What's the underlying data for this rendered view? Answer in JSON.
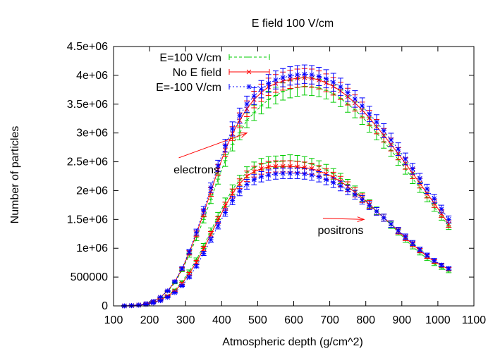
{
  "chart_data": {
    "type": "line",
    "title": "E field 100 V/cm",
    "xlabel": "Atmospheric depth (g/cm^2)",
    "ylabel": "Number of particles",
    "xlim": [
      100,
      1100
    ],
    "ylim": [
      0,
      4500000
    ],
    "x_ticks": [
      100,
      200,
      300,
      400,
      500,
      600,
      700,
      800,
      900,
      1000,
      1100
    ],
    "x_tick_labels": [
      "100",
      "200",
      "300",
      "400",
      "500",
      "600",
      "700",
      "800",
      "900",
      "1000",
      "1100"
    ],
    "y_ticks": [
      0,
      500000,
      1000000,
      1500000,
      2000000,
      2500000,
      3000000,
      3500000,
      4000000,
      4500000
    ],
    "y_tick_labels": [
      "0",
      "500000",
      "1e+06",
      "1.5e+06",
      "2e+06",
      "2.5e+06",
      "3e+06",
      "3.5e+06",
      "4e+06",
      "4.5e+06"
    ],
    "grid": false,
    "legend_position": "top-left",
    "legend": [
      "E=100 V/cm",
      "No E field",
      "E=-100 V/cm"
    ],
    "colors": {
      "E=100 V/cm": "#00cc00",
      "No E field": "#ff0000",
      "E=-100 V/cm": "#0000ff"
    },
    "markers": {
      "E=100 V/cm": "tick",
      "No E field": "x",
      "E=-100 V/cm": "star"
    },
    "annotations": [
      {
        "text": "electrons",
        "arrow_to": [
          470,
          3000000
        ],
        "text_at": [
          330,
          2300000
        ]
      },
      {
        "text": "positrons",
        "arrow_to": [
          795,
          1500000
        ],
        "text_at": [
          730,
          1250000
        ]
      }
    ],
    "x": [
      130,
      150,
      170,
      190,
      210,
      230,
      250,
      270,
      290,
      310,
      330,
      350,
      370,
      390,
      410,
      430,
      450,
      470,
      490,
      510,
      530,
      550,
      570,
      590,
      610,
      630,
      650,
      670,
      690,
      710,
      730,
      750,
      770,
      790,
      810,
      830,
      850,
      870,
      890,
      910,
      930,
      950,
      970,
      990,
      1010,
      1030
    ],
    "series": [
      {
        "name": "E=100 V/cm",
        "particle": "electrons",
        "values": [
          0,
          5000,
          15000,
          40000,
          80000,
          150000,
          250000,
          400000,
          620000,
          880000,
          1180000,
          1500000,
          1850000,
          2200000,
          2520000,
          2800000,
          3000000,
          3220000,
          3350000,
          3470000,
          3580000,
          3650000,
          3720000,
          3760000,
          3790000,
          3810000,
          3800000,
          3780000,
          3740000,
          3680000,
          3600000,
          3500000,
          3400000,
          3280000,
          3140000,
          3000000,
          2850000,
          2700000,
          2540000,
          2380000,
          2210000,
          2050000,
          1880000,
          1710000,
          1550000,
          1380000
        ]
      },
      {
        "name": "No E field",
        "particle": "electrons",
        "values": [
          0,
          5000,
          15000,
          40000,
          80000,
          150000,
          260000,
          420000,
          640000,
          920000,
          1250000,
          1610000,
          1980000,
          2360000,
          2700000,
          2990000,
          3220000,
          3420000,
          3580000,
          3700000,
          3800000,
          3860000,
          3900000,
          3930000,
          3950000,
          3960000,
          3950000,
          3920000,
          3870000,
          3810000,
          3730000,
          3630000,
          3520000,
          3400000,
          3260000,
          3110000,
          2960000,
          2800000,
          2640000,
          2470000,
          2300000,
          2130000,
          1950000,
          1780000,
          1600000,
          1420000
        ]
      },
      {
        "name": "E=-100 V/cm",
        "particle": "electrons",
        "values": [
          0,
          5000,
          15000,
          40000,
          80000,
          150000,
          260000,
          420000,
          650000,
          940000,
          1280000,
          1660000,
          2050000,
          2430000,
          2780000,
          3070000,
          3300000,
          3500000,
          3640000,
          3760000,
          3860000,
          3920000,
          3960000,
          3990000,
          4010000,
          4020000,
          4010000,
          3980000,
          3940000,
          3880000,
          3800000,
          3700000,
          3590000,
          3470000,
          3330000,
          3190000,
          3040000,
          2880000,
          2720000,
          2550000,
          2380000,
          2210000,
          2030000,
          1860000,
          1680000,
          1500000
        ]
      },
      {
        "name": "E=100 V/cm",
        "particle": "positrons",
        "values": [
          0,
          5000,
          15000,
          30000,
          60000,
          110000,
          180000,
          280000,
          420000,
          600000,
          800000,
          1040000,
          1300000,
          1560000,
          1800000,
          2020000,
          2180000,
          2320000,
          2400000,
          2460000,
          2490000,
          2500000,
          2510000,
          2520000,
          2510000,
          2490000,
          2460000,
          2420000,
          2360000,
          2290000,
          2210000,
          2110000,
          2000000,
          1890000,
          1770000,
          1650000,
          1530000,
          1400000,
          1280000,
          1150000,
          1030000,
          920000,
          820000,
          730000,
          660000,
          600000
        ]
      },
      {
        "name": "No E field",
        "particle": "positrons",
        "values": [
          0,
          5000,
          15000,
          30000,
          55000,
          100000,
          170000,
          260000,
          390000,
          560000,
          760000,
          990000,
          1240000,
          1490000,
          1730000,
          1950000,
          2120000,
          2250000,
          2330000,
          2380000,
          2410000,
          2420000,
          2420000,
          2420000,
          2410000,
          2400000,
          2380000,
          2340000,
          2290000,
          2230000,
          2160000,
          2070000,
          1970000,
          1870000,
          1760000,
          1640000,
          1530000,
          1420000,
          1300000,
          1180000,
          1070000,
          960000,
          860000,
          770000,
          700000,
          640000
        ]
      },
      {
        "name": "E=-100 V/cm",
        "particle": "positrons",
        "values": [
          0,
          5000,
          12000,
          25000,
          50000,
          90000,
          150000,
          230000,
          350000,
          500000,
          690000,
          910000,
          1150000,
          1390000,
          1620000,
          1830000,
          1990000,
          2110000,
          2190000,
          2240000,
          2270000,
          2290000,
          2300000,
          2300000,
          2300000,
          2290000,
          2270000,
          2240000,
          2190000,
          2140000,
          2080000,
          2010000,
          1930000,
          1840000,
          1740000,
          1640000,
          1530000,
          1420000,
          1310000,
          1200000,
          1090000,
          980000,
          880000,
          790000,
          710000,
          650000
        ]
      }
    ]
  }
}
